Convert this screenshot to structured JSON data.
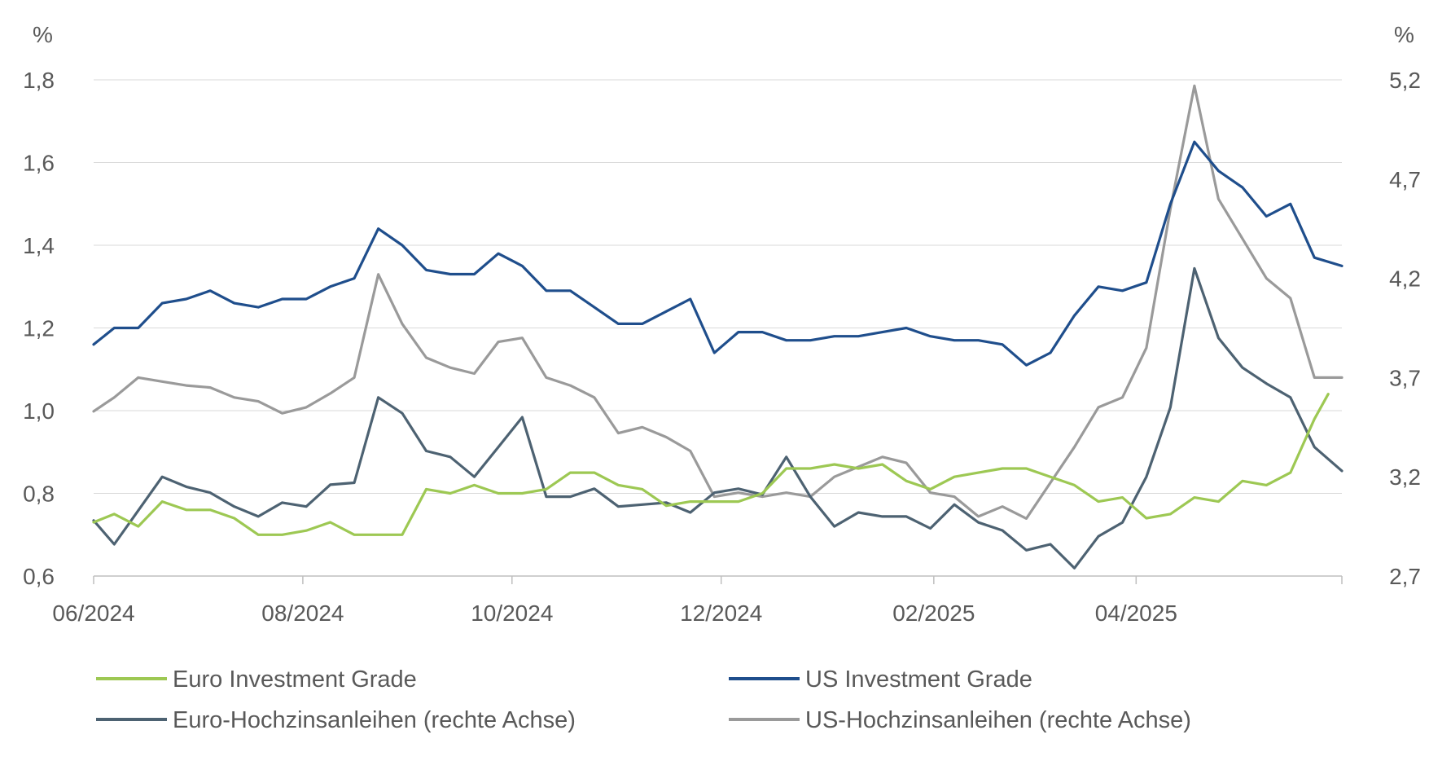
{
  "chart_data": {
    "type": "line",
    "title": "",
    "y_unit_left": "%",
    "y_unit_right": "%",
    "x_tick_labels": [
      "06/2024",
      "08/2024",
      "10/2024",
      "12/2024",
      "02/2025",
      "04/2025"
    ],
    "x_range": [
      "2024-06-01",
      "2025-05-31"
    ],
    "y_left": {
      "min": 0.6,
      "max": 1.8,
      "ticks": [
        "0,6",
        "0,8",
        "1,0",
        "1,2",
        "1,4",
        "1,6",
        "1,8"
      ]
    },
    "y_right": {
      "min": 2.7,
      "max": 5.2,
      "ticks": [
        "2,7",
        "3,2",
        "3,7",
        "4,2",
        "4,7",
        "5,2"
      ]
    },
    "grid": "horizontal",
    "legend_position": "bottom",
    "series": [
      {
        "name": "Euro Investment Grade",
        "axis": "left",
        "color": "#9dc853",
        "points": [
          [
            "2024-06-01",
            0.73
          ],
          [
            "2024-06-07",
            0.75
          ],
          [
            "2024-06-14",
            0.72
          ],
          [
            "2024-06-21",
            0.78
          ],
          [
            "2024-06-28",
            0.76
          ],
          [
            "2024-07-05",
            0.76
          ],
          [
            "2024-07-12",
            0.74
          ],
          [
            "2024-07-19",
            0.7
          ],
          [
            "2024-07-26",
            0.7
          ],
          [
            "2024-08-02",
            0.71
          ],
          [
            "2024-08-09",
            0.73
          ],
          [
            "2024-08-16",
            0.7
          ],
          [
            "2024-08-23",
            0.7
          ],
          [
            "2024-08-30",
            0.7
          ],
          [
            "2024-09-06",
            0.81
          ],
          [
            "2024-09-13",
            0.8
          ],
          [
            "2024-09-20",
            0.82
          ],
          [
            "2024-09-27",
            0.8
          ],
          [
            "2024-10-04",
            0.8
          ],
          [
            "2024-10-11",
            0.81
          ],
          [
            "2024-10-18",
            0.85
          ],
          [
            "2024-10-25",
            0.85
          ],
          [
            "2024-11-01",
            0.82
          ],
          [
            "2024-11-08",
            0.81
          ],
          [
            "2024-11-15",
            0.77
          ],
          [
            "2024-11-22",
            0.78
          ],
          [
            "2024-11-29",
            0.78
          ],
          [
            "2024-12-06",
            0.78
          ],
          [
            "2024-12-13",
            0.8
          ],
          [
            "2024-12-20",
            0.86
          ],
          [
            "2024-12-27",
            0.86
          ],
          [
            "2025-01-03",
            0.87
          ],
          [
            "2025-01-10",
            0.86
          ],
          [
            "2025-01-17",
            0.87
          ],
          [
            "2025-01-24",
            0.83
          ],
          [
            "2025-01-31",
            0.81
          ],
          [
            "2025-02-07",
            0.84
          ],
          [
            "2025-02-14",
            0.85
          ],
          [
            "2025-02-21",
            0.86
          ],
          [
            "2025-02-28",
            0.86
          ],
          [
            "2025-03-07",
            0.84
          ],
          [
            "2025-03-14",
            0.82
          ],
          [
            "2025-03-21",
            0.78
          ],
          [
            "2025-03-28",
            0.79
          ],
          [
            "2025-04-04",
            0.74
          ],
          [
            "2025-04-11",
            0.75
          ],
          [
            "2025-04-18",
            0.79
          ],
          [
            "2025-04-25",
            0.78
          ],
          [
            "2025-05-02",
            0.83
          ],
          [
            "2025-05-09",
            0.82
          ],
          [
            "2025-05-16",
            0.85
          ],
          [
            "2025-05-23",
            0.98
          ],
          [
            "2025-05-27",
            1.04
          ]
        ]
      },
      {
        "name": "US Investment Grade",
        "axis": "left",
        "color": "#1f4e8c",
        "points": [
          [
            "2024-06-01",
            1.16
          ],
          [
            "2024-06-07",
            1.2
          ],
          [
            "2024-06-14",
            1.2
          ],
          [
            "2024-06-21",
            1.26
          ],
          [
            "2024-06-28",
            1.27
          ],
          [
            "2024-07-05",
            1.29
          ],
          [
            "2024-07-12",
            1.26
          ],
          [
            "2024-07-19",
            1.25
          ],
          [
            "2024-07-26",
            1.27
          ],
          [
            "2024-08-02",
            1.27
          ],
          [
            "2024-08-09",
            1.3
          ],
          [
            "2024-08-16",
            1.32
          ],
          [
            "2024-08-23",
            1.44
          ],
          [
            "2024-08-30",
            1.4
          ],
          [
            "2024-09-06",
            1.34
          ],
          [
            "2024-09-13",
            1.33
          ],
          [
            "2024-09-20",
            1.33
          ],
          [
            "2024-09-27",
            1.38
          ],
          [
            "2024-10-04",
            1.35
          ],
          [
            "2024-10-11",
            1.29
          ],
          [
            "2024-10-18",
            1.29
          ],
          [
            "2024-10-25",
            1.25
          ],
          [
            "2024-11-01",
            1.21
          ],
          [
            "2024-11-08",
            1.21
          ],
          [
            "2024-11-15",
            1.24
          ],
          [
            "2024-11-22",
            1.27
          ],
          [
            "2024-11-29",
            1.14
          ],
          [
            "2024-12-06",
            1.19
          ],
          [
            "2024-12-13",
            1.19
          ],
          [
            "2024-12-20",
            1.17
          ],
          [
            "2024-12-27",
            1.17
          ],
          [
            "2025-01-03",
            1.18
          ],
          [
            "2025-01-10",
            1.18
          ],
          [
            "2025-01-17",
            1.19
          ],
          [
            "2025-01-24",
            1.2
          ],
          [
            "2025-01-31",
            1.18
          ],
          [
            "2025-02-07",
            1.17
          ],
          [
            "2025-02-14",
            1.17
          ],
          [
            "2025-02-21",
            1.16
          ],
          [
            "2025-02-28",
            1.11
          ],
          [
            "2025-03-07",
            1.14
          ],
          [
            "2025-03-14",
            1.23
          ],
          [
            "2025-03-21",
            1.3
          ],
          [
            "2025-03-28",
            1.29
          ],
          [
            "2025-04-04",
            1.31
          ],
          [
            "2025-04-11",
            1.5
          ],
          [
            "2025-04-18",
            1.65
          ],
          [
            "2025-04-25",
            1.58
          ],
          [
            "2025-05-02",
            1.54
          ],
          [
            "2025-05-09",
            1.47
          ],
          [
            "2025-05-16",
            1.5
          ],
          [
            "2025-05-23",
            1.37
          ],
          [
            "2025-05-31",
            1.35
          ]
        ]
      },
      {
        "name": "Euro-Hochzinsanleihen (rechte Achse)",
        "axis": "right",
        "color": "#4d6272",
        "points": [
          [
            "2024-06-01",
            2.98
          ],
          [
            "2024-06-07",
            2.86
          ],
          [
            "2024-06-14",
            3.03
          ],
          [
            "2024-06-21",
            3.2
          ],
          [
            "2024-06-28",
            3.15
          ],
          [
            "2024-07-05",
            3.12
          ],
          [
            "2024-07-12",
            3.05
          ],
          [
            "2024-07-19",
            3.0
          ],
          [
            "2024-07-26",
            3.07
          ],
          [
            "2024-08-02",
            3.05
          ],
          [
            "2024-08-09",
            3.16
          ],
          [
            "2024-08-16",
            3.17
          ],
          [
            "2024-08-23",
            3.6
          ],
          [
            "2024-08-30",
            3.52
          ],
          [
            "2024-09-06",
            3.33
          ],
          [
            "2024-09-13",
            3.3
          ],
          [
            "2024-09-20",
            3.2
          ],
          [
            "2024-09-27",
            3.35
          ],
          [
            "2024-10-04",
            3.5
          ],
          [
            "2024-10-11",
            3.1
          ],
          [
            "2024-10-18",
            3.1
          ],
          [
            "2024-10-25",
            3.14
          ],
          [
            "2024-11-01",
            3.05
          ],
          [
            "2024-11-08",
            3.06
          ],
          [
            "2024-11-15",
            3.07
          ],
          [
            "2024-11-22",
            3.02
          ],
          [
            "2024-11-29",
            3.12
          ],
          [
            "2024-12-06",
            3.14
          ],
          [
            "2024-12-13",
            3.11
          ],
          [
            "2024-12-20",
            3.3
          ],
          [
            "2024-12-27",
            3.1
          ],
          [
            "2025-01-03",
            2.95
          ],
          [
            "2025-01-10",
            3.02
          ],
          [
            "2025-01-17",
            3.0
          ],
          [
            "2025-01-24",
            3.0
          ],
          [
            "2025-01-31",
            2.94
          ],
          [
            "2025-02-07",
            3.06
          ],
          [
            "2025-02-14",
            2.97
          ],
          [
            "2025-02-21",
            2.93
          ],
          [
            "2025-02-28",
            2.83
          ],
          [
            "2025-03-07",
            2.86
          ],
          [
            "2025-03-14",
            2.74
          ],
          [
            "2025-03-21",
            2.9
          ],
          [
            "2025-03-28",
            2.97
          ],
          [
            "2025-04-04",
            3.2
          ],
          [
            "2025-04-11",
            3.55
          ],
          [
            "2025-04-18",
            4.25
          ],
          [
            "2025-04-25",
            3.9
          ],
          [
            "2025-05-02",
            3.75
          ],
          [
            "2025-05-09",
            3.67
          ],
          [
            "2025-05-16",
            3.6
          ],
          [
            "2025-05-23",
            3.35
          ],
          [
            "2025-05-31",
            3.23
          ]
        ]
      },
      {
        "name": "US-Hochzinsanleihen (rechte Achse)",
        "axis": "right",
        "color": "#9a9a9a",
        "points": [
          [
            "2024-06-01",
            3.53
          ],
          [
            "2024-06-07",
            3.6
          ],
          [
            "2024-06-14",
            3.7
          ],
          [
            "2024-06-21",
            3.68
          ],
          [
            "2024-06-28",
            3.66
          ],
          [
            "2024-07-05",
            3.65
          ],
          [
            "2024-07-12",
            3.6
          ],
          [
            "2024-07-19",
            3.58
          ],
          [
            "2024-07-26",
            3.52
          ],
          [
            "2024-08-02",
            3.55
          ],
          [
            "2024-08-09",
            3.62
          ],
          [
            "2024-08-16",
            3.7
          ],
          [
            "2024-08-23",
            4.22
          ],
          [
            "2024-08-30",
            3.97
          ],
          [
            "2024-09-06",
            3.8
          ],
          [
            "2024-09-13",
            3.75
          ],
          [
            "2024-09-20",
            3.72
          ],
          [
            "2024-09-27",
            3.88
          ],
          [
            "2024-10-04",
            3.9
          ],
          [
            "2024-10-11",
            3.7
          ],
          [
            "2024-10-18",
            3.66
          ],
          [
            "2024-10-25",
            3.6
          ],
          [
            "2024-11-01",
            3.42
          ],
          [
            "2024-11-08",
            3.45
          ],
          [
            "2024-11-15",
            3.4
          ],
          [
            "2024-11-22",
            3.33
          ],
          [
            "2024-11-29",
            3.1
          ],
          [
            "2024-12-06",
            3.12
          ],
          [
            "2024-12-13",
            3.1
          ],
          [
            "2024-12-20",
            3.12
          ],
          [
            "2024-12-27",
            3.1
          ],
          [
            "2025-01-03",
            3.2
          ],
          [
            "2025-01-10",
            3.25
          ],
          [
            "2025-01-17",
            3.3
          ],
          [
            "2025-01-24",
            3.27
          ],
          [
            "2025-01-31",
            3.12
          ],
          [
            "2025-02-07",
            3.1
          ],
          [
            "2025-02-14",
            3.0
          ],
          [
            "2025-02-21",
            3.05
          ],
          [
            "2025-02-28",
            2.99
          ],
          [
            "2025-03-07",
            3.17
          ],
          [
            "2025-03-14",
            3.35
          ],
          [
            "2025-03-21",
            3.55
          ],
          [
            "2025-03-28",
            3.6
          ],
          [
            "2025-04-04",
            3.85
          ],
          [
            "2025-04-11",
            4.55
          ],
          [
            "2025-04-18",
            5.17
          ],
          [
            "2025-04-25",
            4.6
          ],
          [
            "2025-05-02",
            4.4
          ],
          [
            "2025-05-09",
            4.2
          ],
          [
            "2025-05-16",
            4.1
          ],
          [
            "2025-05-23",
            3.7
          ],
          [
            "2025-05-31",
            3.7
          ]
        ]
      }
    ]
  },
  "legend": {
    "items": [
      {
        "label": "Euro Investment Grade",
        "color": "#9dc853"
      },
      {
        "label": "US Investment Grade",
        "color": "#1f4e8c"
      },
      {
        "label": "Euro-Hochzinsanleihen (rechte Achse)",
        "color": "#4d6272"
      },
      {
        "label": "US-Hochzinsanleihen (rechte Achse)",
        "color": "#9a9a9a"
      }
    ]
  }
}
